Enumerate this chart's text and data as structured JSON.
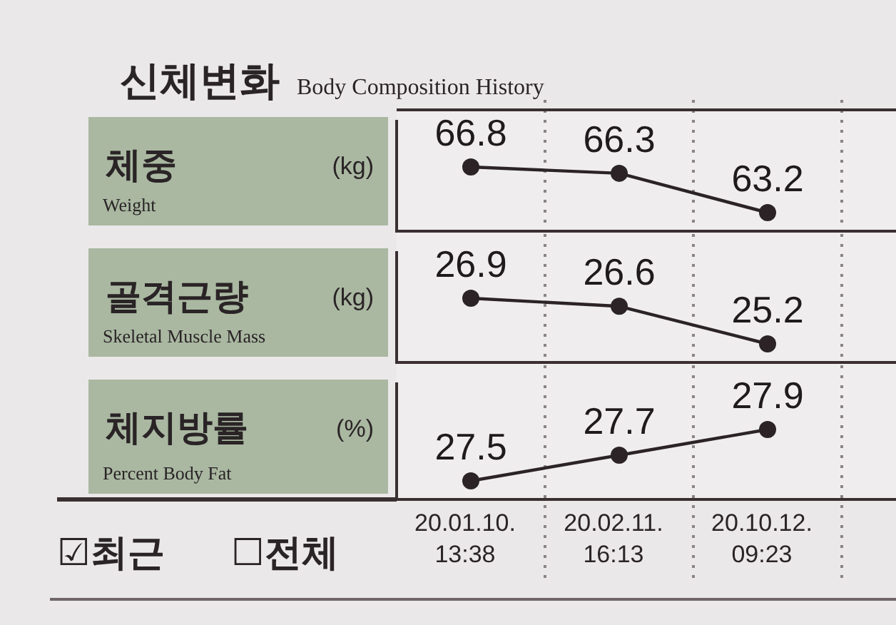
{
  "chart_data": [
    {
      "type": "line",
      "title": "신체변화",
      "subtitle": "Body Composition History",
      "ylabel": "체중",
      "annotations": [
        "(kg)",
        "Weight"
      ],
      "categories": [
        null,
        null,
        null,
        null
      ],
      "values": [
        66.8,
        66.3,
        63.2,
        null
      ],
      "color": "#2b2326",
      "marker": "circle",
      "data_labels": true,
      "grid": "x"
    },
    {
      "type": "line",
      "ylabel": "골격근량",
      "annotations": [
        "(kg)",
        "Skeletal Muscle Mass"
      ],
      "categories": [
        null,
        null,
        null,
        null
      ],
      "values": [
        26.9,
        26.6,
        25.2,
        null
      ],
      "color": "#2b2326",
      "marker": "circle",
      "data_labels": true,
      "grid": "x"
    },
    {
      "type": "line",
      "ylabel": "체지방률",
      "annotations": [
        "(%)",
        "Percent Body Fat"
      ],
      "categories": [
        "20.01.10.\n13:38",
        "20.02.11.\n16:13",
        "20.10.12.\n09:23",
        null
      ],
      "values": [
        27.5,
        27.7,
        27.9,
        null
      ],
      "color": "#2b2326",
      "marker": "circle",
      "data_labels": true,
      "grid": "x"
    },
    {
      "type": "other",
      "annotations": [
        "☑최근",
        "☐전체"
      ]
    }
  ]
}
